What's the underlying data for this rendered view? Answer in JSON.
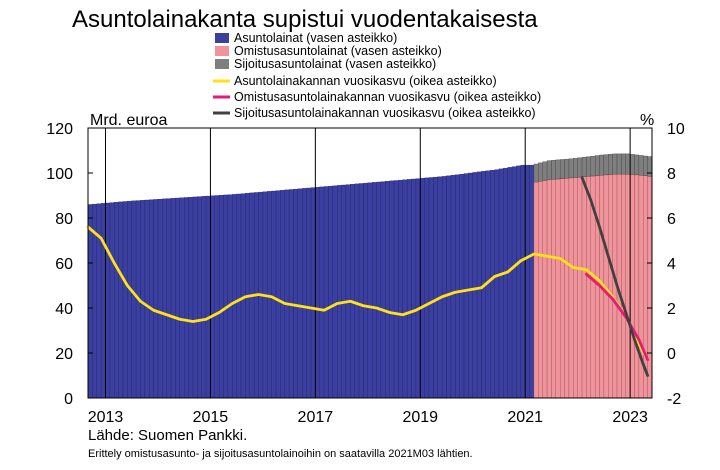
{
  "chart_data": {
    "type": "bar",
    "title": "Asuntolainakanta supistui vuodentakaisesta",
    "left_axis_label": "Mrd. euroa",
    "right_axis_label": "%",
    "left_axis": {
      "ylim": [
        0,
        120
      ],
      "ticks": [
        "0",
        "20",
        "40",
        "60",
        "80",
        "100",
        "120"
      ]
    },
    "right_axis": {
      "ylim": [
        -2,
        10
      ],
      "ticks": [
        "-2",
        "0",
        "2",
        "4",
        "6",
        "8",
        "10"
      ]
    },
    "x_axis": {
      "start": "2012-09",
      "end": "2023-06",
      "tick_labels": [
        "2013",
        "2015",
        "2017",
        "2019",
        "2021",
        "2023"
      ]
    },
    "grid": "vertical lines every two years",
    "legend_position": "top-right",
    "legend": [
      {
        "label": "Asuntolainat (vasen asteikko)",
        "kind": "bar",
        "color": "#3b3f9f"
      },
      {
        "label": "Omistusasuntolainat (vasen asteikko)",
        "kind": "bar",
        "color": "#f0939a"
      },
      {
        "label": "Sijoitusasuntolainat (vasen asteikko)",
        "kind": "bar",
        "color": "#7f7f7f"
      },
      {
        "label": "Asuntolainakannan vuosikasvu (oikea asteikko)",
        "kind": "line",
        "color": "#ffe11a"
      },
      {
        "label": "Omistusasuntolainakannan vuosikasvu (oikea asteikko)",
        "kind": "line",
        "color": "#e6197a"
      },
      {
        "label": "Sijoitusasuntolainakannan vuosikasvu (oikea asteikko)",
        "kind": "line",
        "color": "#404040"
      }
    ],
    "bars_total": {
      "x": [
        "2012-09",
        "2013-06",
        "2014-06",
        "2015-06",
        "2016-06",
        "2017-06",
        "2018-06",
        "2019-06",
        "2020-06",
        "2020-12"
      ],
      "values": [
        86,
        87.5,
        89,
        90.5,
        92.5,
        94.5,
        96.5,
        98.5,
        101.5,
        103.5
      ]
    },
    "bars_split": {
      "x": [
        "2021-03",
        "2021-06",
        "2021-12",
        "2022-06",
        "2022-09",
        "2022-12",
        "2023-03",
        "2023-05"
      ],
      "omistus": [
        96,
        97,
        98,
        99,
        99.5,
        99.5,
        99,
        98.5
      ],
      "sijoitus": [
        8,
        8.5,
        8.5,
        9,
        9,
        9,
        8.8,
        8.8
      ]
    },
    "series": [
      {
        "name": "Asuntolainakannan vuosikasvu (oikea asteikko)",
        "x": [
          "2012-09",
          "2012-12",
          "2013-03",
          "2013-06",
          "2013-09",
          "2013-12",
          "2014-03",
          "2014-06",
          "2014-09",
          "2014-12",
          "2015-03",
          "2015-06",
          "2015-09",
          "2015-12",
          "2016-03",
          "2016-06",
          "2016-09",
          "2016-12",
          "2017-03",
          "2017-06",
          "2017-09",
          "2017-12",
          "2018-03",
          "2018-06",
          "2018-09",
          "2018-12",
          "2019-03",
          "2019-06",
          "2019-09",
          "2019-12",
          "2020-03",
          "2020-06",
          "2020-09",
          "2020-12",
          "2021-03",
          "2021-06",
          "2021-09",
          "2021-12",
          "2022-03",
          "2022-06",
          "2022-09",
          "2022-12",
          "2023-03",
          "2023-05"
        ],
        "values": [
          5.6,
          5.1,
          4.0,
          3.0,
          2.3,
          1.9,
          1.7,
          1.5,
          1.4,
          1.5,
          1.8,
          2.2,
          2.5,
          2.6,
          2.5,
          2.2,
          2.1,
          2.0,
          1.9,
          2.2,
          2.3,
          2.1,
          2.0,
          1.8,
          1.7,
          1.9,
          2.2,
          2.5,
          2.7,
          2.8,
          2.9,
          3.4,
          3.6,
          4.1,
          4.4,
          4.3,
          4.2,
          3.8,
          3.7,
          3.2,
          2.5,
          1.6,
          0.4,
          -0.3
        ]
      },
      {
        "name": "Omistusasuntolainakannan vuosikasvu (oikea asteikko)",
        "x": [
          "2022-03",
          "2022-06",
          "2022-09",
          "2022-12",
          "2023-03",
          "2023-05"
        ],
        "values": [
          3.5,
          3.0,
          2.4,
          1.6,
          0.6,
          -0.3
        ]
      },
      {
        "name": "Sijoitusasuntolainakannan vuosikasvu (oikea asteikko)",
        "x": [
          "2022-02",
          "2022-04",
          "2022-06",
          "2022-08",
          "2022-10",
          "2022-12",
          "2023-02",
          "2023-04",
          "2023-05"
        ],
        "values": [
          7.8,
          6.8,
          5.6,
          4.3,
          3.0,
          1.8,
          0.6,
          -0.5,
          -1.0
        ]
      }
    ]
  },
  "source": "Lähde: Suomen Pankki.",
  "note": "Erittely omistusasunto- ja sijoitusasuntolainoihin on saatavilla 2021M03 lähtien."
}
